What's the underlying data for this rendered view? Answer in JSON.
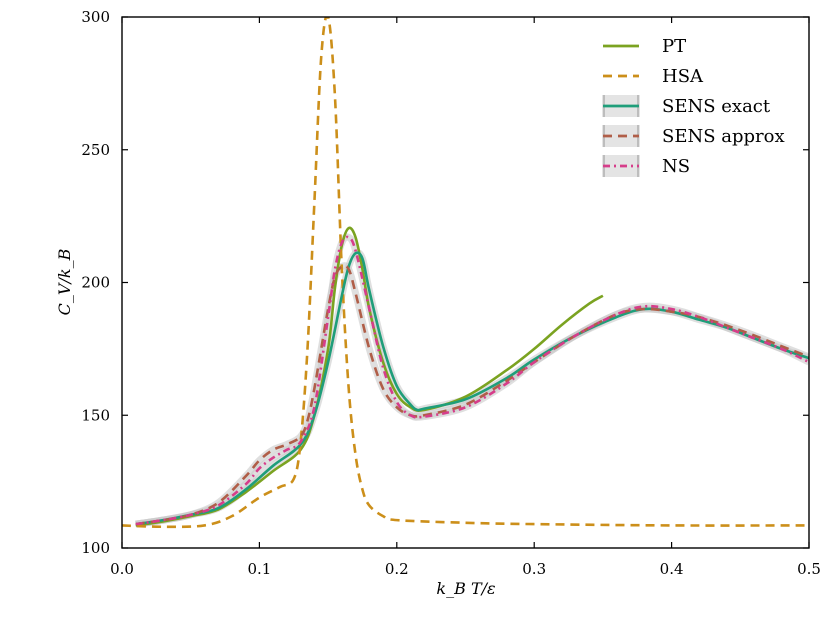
{
  "chart_data": {
    "type": "line",
    "title": "",
    "xlabel": "k_B T/ε",
    "ylabel": "C_V/k_B",
    "xlim": [
      0.0,
      0.5
    ],
    "ylim": [
      100,
      300
    ],
    "xticks": [
      0.0,
      0.1,
      0.2,
      0.3,
      0.4,
      0.5
    ],
    "yticks": [
      100,
      150,
      200,
      250,
      300
    ],
    "xtick_labels": [
      "0.0",
      "0.1",
      "0.2",
      "0.3",
      "0.4",
      "0.5"
    ],
    "ytick_labels": [
      "100",
      "150",
      "200",
      "250",
      "300"
    ],
    "grid": false,
    "legend_position": "top-right",
    "series": [
      {
        "name": "PT",
        "color": "#7ba321",
        "style": "solid",
        "band": false,
        "x": [
          0.01,
          0.03,
          0.05,
          0.07,
          0.09,
          0.11,
          0.13,
          0.14,
          0.15,
          0.155,
          0.16,
          0.165,
          0.17,
          0.175,
          0.18,
          0.19,
          0.2,
          0.21,
          0.22,
          0.25,
          0.28,
          0.3,
          0.32,
          0.34,
          0.35
        ],
        "y": [
          108.5,
          110,
          112,
          114.5,
          121,
          129,
          137,
          150,
          175,
          198,
          214,
          220.5,
          217,
          205,
          190,
          170,
          158,
          153,
          152,
          157,
          167,
          175,
          184,
          192,
          195
        ]
      },
      {
        "name": "HSA",
        "color": "#cc8f1a",
        "style": "dashed",
        "band": false,
        "x": [
          0.0,
          0.03,
          0.06,
          0.08,
          0.1,
          0.115,
          0.125,
          0.13,
          0.135,
          0.14,
          0.145,
          0.15,
          0.155,
          0.16,
          0.165,
          0.17,
          0.175,
          0.18,
          0.19,
          0.2,
          0.25,
          0.3,
          0.4,
          0.5
        ],
        "y": [
          108.5,
          108,
          108.5,
          112,
          119,
          123,
          126,
          140,
          175,
          230,
          285,
          300,
          270,
          205,
          160,
          135,
          122,
          116,
          112,
          110.5,
          109.5,
          109,
          108.5,
          108.5
        ]
      },
      {
        "name": "SENS exact",
        "color": "#1f9e7a",
        "style": "solid",
        "band": true,
        "x": [
          0.01,
          0.03,
          0.05,
          0.07,
          0.09,
          0.11,
          0.13,
          0.14,
          0.15,
          0.16,
          0.165,
          0.17,
          0.175,
          0.18,
          0.19,
          0.2,
          0.21,
          0.215,
          0.22,
          0.25,
          0.28,
          0.3,
          0.33,
          0.36,
          0.38,
          0.4,
          0.42,
          0.44,
          0.46,
          0.48,
          0.5
        ],
        "y": [
          109,
          110.5,
          112.5,
          115,
          122,
          131,
          139,
          150,
          170,
          195,
          206,
          211,
          209,
          197,
          176,
          161,
          154,
          152,
          152.5,
          156,
          164,
          171,
          180,
          187,
          190,
          189,
          186,
          183,
          179,
          175,
          171.5
        ]
      },
      {
        "name": "SENS approx",
        "color": "#b05e48",
        "style": "dashed",
        "band": true,
        "x": [
          0.01,
          0.03,
          0.05,
          0.07,
          0.09,
          0.1,
          0.11,
          0.12,
          0.13,
          0.135,
          0.14,
          0.15,
          0.155,
          0.16,
          0.165,
          0.17,
          0.18,
          0.19,
          0.2,
          0.21,
          0.22,
          0.25,
          0.28,
          0.3,
          0.33,
          0.36,
          0.38,
          0.4,
          0.42,
          0.45,
          0.48,
          0.5
        ],
        "y": [
          109,
          110.5,
          112.5,
          117,
          127,
          133,
          137,
          139,
          142,
          148,
          160,
          190,
          202,
          206,
          205,
          196,
          175,
          160,
          153,
          150,
          150,
          154,
          163,
          170,
          180,
          188,
          190,
          189,
          187,
          182,
          176,
          172
        ]
      },
      {
        "name": "NS",
        "color": "#d63d8a",
        "style": "dashdot",
        "band": true,
        "x": [
          0.01,
          0.03,
          0.05,
          0.07,
          0.09,
          0.1,
          0.11,
          0.12,
          0.13,
          0.14,
          0.15,
          0.155,
          0.16,
          0.165,
          0.17,
          0.18,
          0.19,
          0.2,
          0.21,
          0.22,
          0.25,
          0.28,
          0.3,
          0.33,
          0.36,
          0.38,
          0.4,
          0.42,
          0.45,
          0.48,
          0.5
        ],
        "y": [
          109,
          110.5,
          112.5,
          116,
          124,
          130,
          134,
          137,
          140,
          153,
          187,
          205,
          215,
          217,
          212,
          190,
          168,
          155,
          150,
          149.5,
          153,
          162,
          170,
          180,
          188,
          191,
          190,
          187,
          181,
          175,
          170
        ]
      }
    ]
  }
}
